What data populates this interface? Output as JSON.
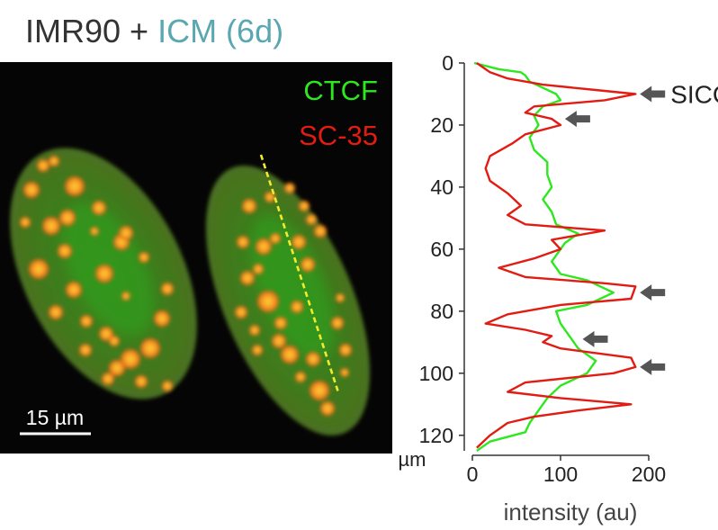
{
  "figure": {
    "title_prefix": "IMR90 + ",
    "title_accent": "ICM (6d)",
    "colors": {
      "title": "#333333",
      "accent": "#5aa7b2",
      "ctcf": "#2ee81f",
      "sc35": "#e21c12",
      "arrow": "#555555"
    }
  },
  "micrograph": {
    "channels": [
      {
        "label": "CTCF",
        "color": "#2ee81f"
      },
      {
        "label": "SC-35",
        "color": "#e21c12"
      }
    ],
    "scale_bar_label": "15 µm"
  },
  "chart_data": {
    "type": "line",
    "orientation": "vertical-profile",
    "xlabel": "intensity (au)",
    "ylabel": "µm",
    "xlim": [
      0,
      200
    ],
    "ylim": [
      0,
      125
    ],
    "y_inverted": true,
    "x_ticks": [
      0,
      100,
      200
    ],
    "y_ticks": [
      0,
      20,
      40,
      60,
      80,
      100,
      120
    ],
    "series": [
      {
        "name": "CTCF",
        "color": "#2ee81f",
        "points": [
          [
            2,
            0
          ],
          [
            30,
            2
          ],
          [
            55,
            3
          ],
          [
            60,
            4
          ],
          [
            65,
            6
          ],
          [
            80,
            8
          ],
          [
            95,
            10
          ],
          [
            100,
            12
          ],
          [
            80,
            14
          ],
          [
            70,
            17
          ],
          [
            75,
            20
          ],
          [
            65,
            24
          ],
          [
            70,
            28
          ],
          [
            85,
            32
          ],
          [
            85,
            36
          ],
          [
            90,
            40
          ],
          [
            80,
            44
          ],
          [
            90,
            48
          ],
          [
            95,
            52
          ],
          [
            120,
            55
          ],
          [
            105,
            58
          ],
          [
            100,
            60
          ],
          [
            90,
            64
          ],
          [
            100,
            68
          ],
          [
            130,
            70
          ],
          [
            160,
            74
          ],
          [
            130,
            78
          ],
          [
            95,
            80
          ],
          [
            100,
            84
          ],
          [
            110,
            88
          ],
          [
            120,
            92
          ],
          [
            140,
            96
          ],
          [
            130,
            100
          ],
          [
            100,
            104
          ],
          [
            85,
            108
          ],
          [
            75,
            112
          ],
          [
            65,
            116
          ],
          [
            60,
            119
          ],
          [
            20,
            122
          ],
          [
            5,
            125
          ]
        ]
      },
      {
        "name": "SC-35",
        "color": "#e21c12",
        "points": [
          [
            5,
            0
          ],
          [
            20,
            3
          ],
          [
            40,
            5
          ],
          [
            80,
            7
          ],
          [
            150,
            9
          ],
          [
            185,
            10
          ],
          [
            150,
            12
          ],
          [
            70,
            14
          ],
          [
            60,
            16
          ],
          [
            90,
            18
          ],
          [
            100,
            20
          ],
          [
            60,
            23
          ],
          [
            45,
            26
          ],
          [
            20,
            30
          ],
          [
            15,
            34
          ],
          [
            20,
            38
          ],
          [
            40,
            42
          ],
          [
            55,
            46
          ],
          [
            40,
            49
          ],
          [
            60,
            52
          ],
          [
            150,
            54
          ],
          [
            90,
            57
          ],
          [
            100,
            60
          ],
          [
            70,
            63
          ],
          [
            30,
            66
          ],
          [
            60,
            69
          ],
          [
            150,
            71
          ],
          [
            185,
            72
          ],
          [
            180,
            76
          ],
          [
            100,
            78
          ],
          [
            40,
            81
          ],
          [
            15,
            84
          ],
          [
            60,
            86
          ],
          [
            90,
            88
          ],
          [
            80,
            90
          ],
          [
            100,
            92
          ],
          [
            180,
            95
          ],
          [
            185,
            98
          ],
          [
            160,
            100
          ],
          [
            60,
            103
          ],
          [
            40,
            106
          ],
          [
            100,
            108
          ],
          [
            180,
            110
          ],
          [
            120,
            112
          ],
          [
            70,
            114
          ],
          [
            40,
            116
          ],
          [
            20,
            120
          ],
          [
            5,
            124
          ]
        ]
      }
    ],
    "annotations": [
      {
        "type": "arrow",
        "label": "SICC",
        "x": 190,
        "y": 10
      },
      {
        "type": "arrow",
        "label": "",
        "x": 105,
        "y": 18
      },
      {
        "type": "arrow",
        "label": "",
        "x": 190,
        "y": 74
      },
      {
        "type": "arrow",
        "label": "",
        "x": 125,
        "y": 89
      },
      {
        "type": "arrow",
        "label": "",
        "x": 190,
        "y": 98
      }
    ]
  }
}
